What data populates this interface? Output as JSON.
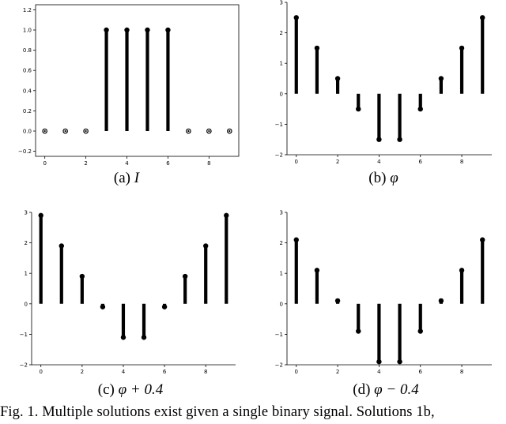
{
  "chart_data": [
    {
      "type": "stem",
      "x": [
        0,
        1,
        2,
        3,
        4,
        5,
        6,
        7,
        8,
        9
      ],
      "y": [
        0,
        0,
        0,
        1,
        1,
        1,
        1,
        0,
        0,
        0
      ],
      "ylim": [
        -0.25,
        1.25
      ],
      "x_ticks": [
        0,
        2,
        4,
        6,
        8
      ],
      "x_tick_labels": [
        "0",
        "2",
        "4",
        "6",
        "8"
      ],
      "y_ticks": [
        -0.2,
        0.0,
        0.2,
        0.4,
        0.6,
        0.8,
        1.0,
        1.2
      ],
      "y_tick_labels": [
        "−0.2",
        "0.0",
        "0.2",
        "0.4",
        "0.6",
        "0.8",
        "1.0",
        "1.2"
      ],
      "frame": true,
      "caption_prefix": "(a)",
      "caption_math": "I"
    },
    {
      "type": "stem",
      "x": [
        0,
        1,
        2,
        3,
        4,
        5,
        6,
        7,
        8,
        9
      ],
      "y": [
        2.5,
        1.5,
        0.5,
        -0.5,
        -1.5,
        -1.5,
        -0.5,
        0.5,
        1.5,
        2.5
      ],
      "ylim": [
        -2,
        3
      ],
      "x_ticks": [
        0,
        2,
        4,
        6,
        8
      ],
      "x_tick_labels": [
        "0",
        "2",
        "4",
        "6",
        "8"
      ],
      "y_ticks": [
        -2,
        -1,
        0,
        1,
        2,
        3
      ],
      "y_tick_labels": [
        "−2",
        "−1",
        "0",
        "1",
        "2",
        "3"
      ],
      "frame": false,
      "caption_prefix": "(b)",
      "caption_math": "φ"
    },
    {
      "type": "stem",
      "x": [
        0,
        1,
        2,
        3,
        4,
        5,
        6,
        7,
        8,
        9
      ],
      "y": [
        2.9,
        1.9,
        0.9,
        -0.1,
        -1.1,
        -1.1,
        -0.1,
        0.9,
        1.9,
        2.9
      ],
      "ylim": [
        -2,
        3
      ],
      "x_ticks": [
        0,
        2,
        4,
        6,
        8
      ],
      "x_tick_labels": [
        "0",
        "2",
        "4",
        "6",
        "8"
      ],
      "y_ticks": [
        -2,
        -1,
        0,
        1,
        2,
        3
      ],
      "y_tick_labels": [
        "−2",
        "−1",
        "0",
        "1",
        "2",
        "3"
      ],
      "frame": false,
      "caption_prefix": "(c)",
      "caption_math": "φ + 0.4"
    },
    {
      "type": "stem",
      "x": [
        0,
        1,
        2,
        3,
        4,
        5,
        6,
        7,
        8,
        9
      ],
      "y": [
        2.1,
        1.1,
        0.1,
        -0.9,
        -1.9,
        -1.9,
        -0.9,
        0.1,
        1.1,
        2.1
      ],
      "ylim": [
        -2,
        3
      ],
      "x_ticks": [
        0,
        2,
        4,
        6,
        8
      ],
      "x_tick_labels": [
        "0",
        "2",
        "4",
        "6",
        "8"
      ],
      "y_ticks": [
        -2,
        -1,
        0,
        1,
        2,
        3
      ],
      "y_tick_labels": [
        "−2",
        "−1",
        "0",
        "1",
        "2",
        "3"
      ],
      "frame": false,
      "caption_prefix": "(d)",
      "caption_math": "φ − 0.4"
    }
  ],
  "figure_caption": "Fig. 1.  Multiple solutions exist given a single binary signal. Solutions 1b,"
}
